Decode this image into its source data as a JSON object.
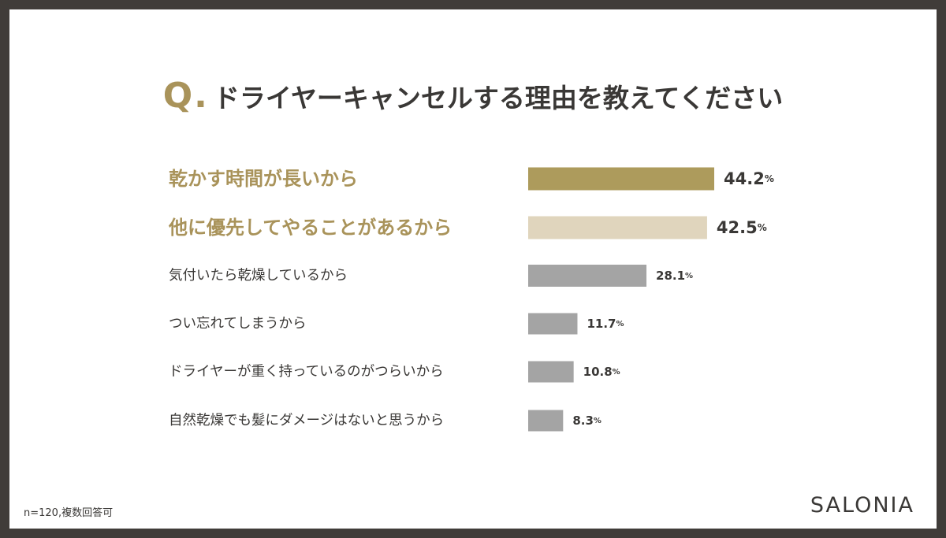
{
  "title": {
    "mark": "Q.",
    "text": "ドライヤーキャンセルする理由を教えてください"
  },
  "chart_data": {
    "type": "bar",
    "orientation": "horizontal",
    "categories": [
      "乾かす時間が長いから",
      "他に優先してやることがあるから",
      "気付いたら乾燥しているから",
      "つい忘れてしまうから",
      "ドライヤーが重く持っているのがつらいから",
      "自然乾燥でも髪にダメージはないと思うから"
    ],
    "values": [
      44.2,
      42.5,
      28.1,
      11.7,
      10.8,
      8.3
    ],
    "value_labels": [
      "44.2",
      "42.5",
      "28.1",
      "11.7",
      "10.8",
      "8.3"
    ],
    "unit": "%",
    "bar_colors": [
      "#ad9b5c",
      "#e0d5bd",
      "#a4a4a4",
      "#a4a4a4",
      "#a4a4a4",
      "#a4a4a4"
    ],
    "label_colors": [
      "#a9935a",
      "#a9935a",
      "#3a3836",
      "#3a3836",
      "#3a3836",
      "#3a3836"
    ],
    "highlighted": [
      true,
      true,
      false,
      false,
      false,
      false
    ],
    "xlim": [
      0,
      44.2
    ],
    "axes_visible": false,
    "grid": false
  },
  "footnote": "n=120,複数回答可",
  "brand": "SALONIA",
  "colors": {
    "frame": "#403c39",
    "background": "#ffffff",
    "accent": "#a9935a",
    "text": "#3a3836"
  }
}
